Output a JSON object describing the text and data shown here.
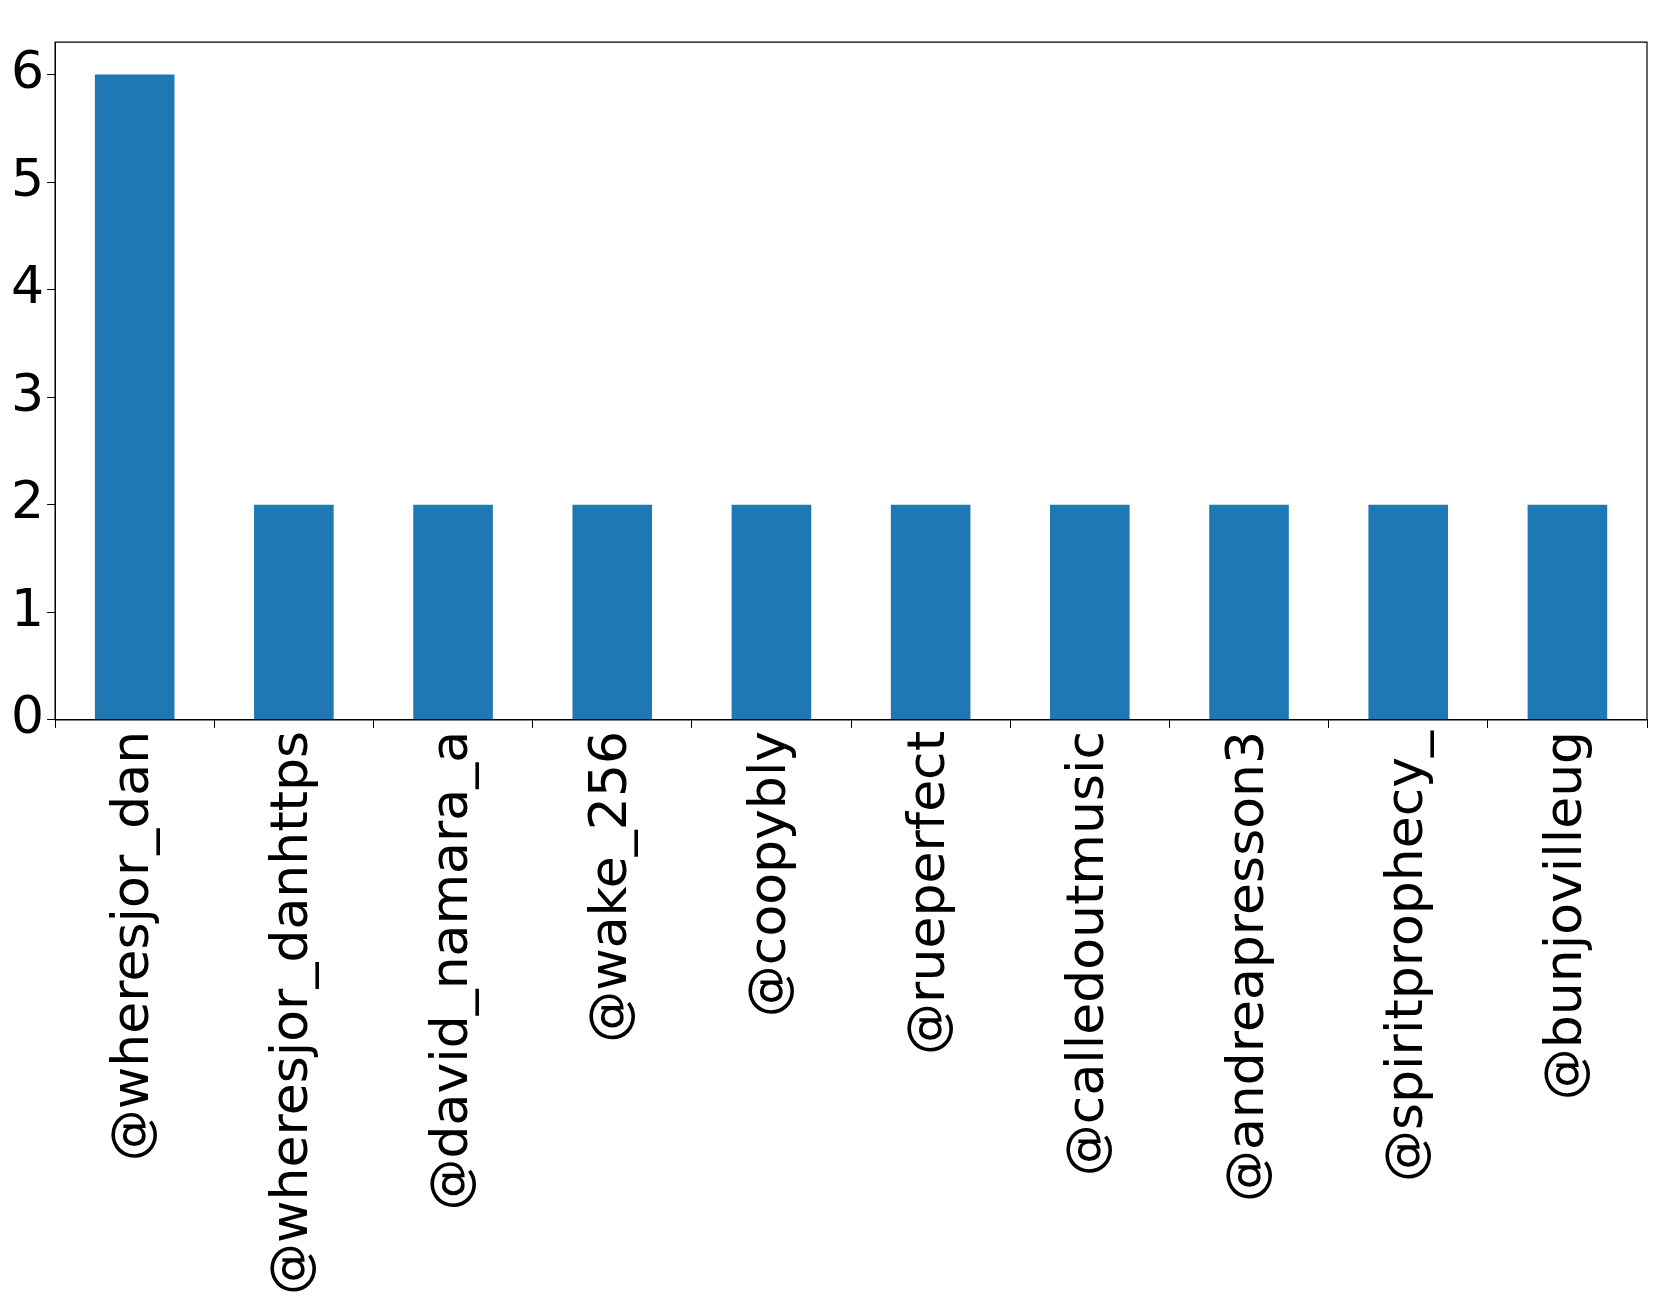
{
  "chart_data": {
    "type": "bar",
    "categories": [
      "@wheresjor_dan",
      "@wheresjor_danhttps",
      "@david_namara_a",
      "@wake_256",
      "@coopybly",
      "@rueperfect",
      "@calledoutmusic",
      "@andreapresson3",
      "@spiritprophecy_",
      "@bunjovilleug"
    ],
    "values": [
      6,
      2,
      2,
      2,
      2,
      2,
      2,
      2,
      2,
      2
    ],
    "color": "#1f77b4",
    "ylim": [
      0,
      6.3
    ],
    "yticks": [
      0,
      1,
      2,
      3,
      4,
      5,
      6
    ]
  }
}
